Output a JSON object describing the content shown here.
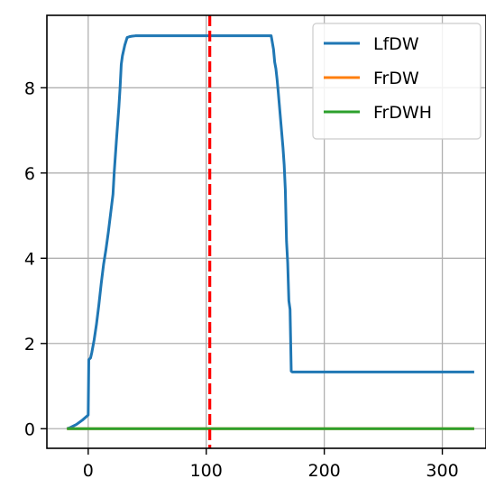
{
  "chart_data": {
    "type": "line",
    "title": "",
    "xlabel": "",
    "ylabel": "",
    "xlim": [
      -35,
      337
    ],
    "ylim": [
      -0.46,
      9.7
    ],
    "grid": true,
    "legend_position": "top-right",
    "x_ticks": [
      {
        "value": 0,
        "label": "0"
      },
      {
        "value": 100,
        "label": "100"
      },
      {
        "value": 200,
        "label": "200"
      },
      {
        "value": 300,
        "label": "300"
      }
    ],
    "y_ticks": [
      {
        "value": 0,
        "label": "0"
      },
      {
        "value": 2,
        "label": "2"
      },
      {
        "value": 4,
        "label": "4"
      },
      {
        "value": 6,
        "label": "6"
      },
      {
        "value": 8,
        "label": "8"
      }
    ],
    "vline": {
      "x": 103,
      "color": "#ff0000",
      "style": "dashed"
    },
    "series": [
      {
        "name": "LfDW",
        "color": "#1f77b4",
        "x": [
          -18,
          -15,
          -10,
          -5,
          0,
          0.5,
          2,
          3,
          5,
          7,
          9,
          11,
          13,
          15,
          17,
          19,
          21,
          22,
          24,
          26,
          27,
          28,
          29,
          31,
          33,
          35,
          37,
          40,
          50,
          100,
          155,
          157,
          158,
          159,
          160,
          161,
          165,
          166,
          167,
          168,
          169,
          170,
          171,
          172,
          173,
          175,
          200,
          250,
          300,
          327
        ],
        "y": [
          0.0,
          0.03,
          0.1,
          0.2,
          0.32,
          1.62,
          1.66,
          1.78,
          2.08,
          2.45,
          2.9,
          3.4,
          3.85,
          4.2,
          4.6,
          5.05,
          5.5,
          6.0,
          6.8,
          7.55,
          8.0,
          8.55,
          8.75,
          9.0,
          9.18,
          9.2,
          9.21,
          9.22,
          9.22,
          9.22,
          9.22,
          8.9,
          8.6,
          8.45,
          8.2,
          7.9,
          6.6,
          6.2,
          5.6,
          4.4,
          3.9,
          3.0,
          2.8,
          1.35,
          1.33,
          1.33,
          1.33,
          1.33,
          1.33,
          1.33
        ]
      },
      {
        "name": "FrDW",
        "color": "#ff7f0e",
        "x": [
          -18,
          327
        ],
        "y": [
          0,
          0
        ]
      },
      {
        "name": "FrDWH",
        "color": "#2ca02c",
        "x": [
          -18,
          327
        ],
        "y": [
          0,
          0
        ]
      }
    ]
  }
}
